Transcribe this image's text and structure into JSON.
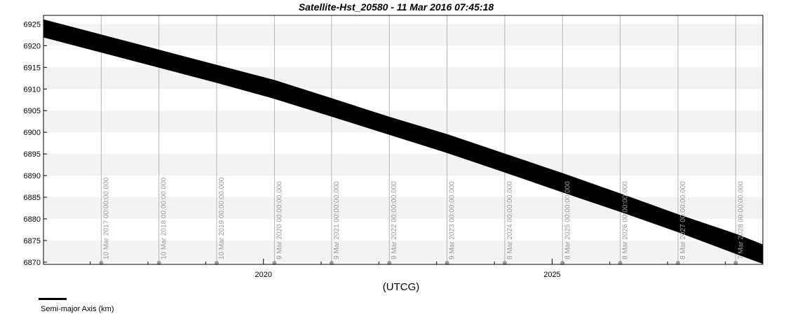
{
  "chart_data": {
    "type": "area",
    "title": "Satellite-Hst_20580 - 11 Mar 2016 07:45:18",
    "xlabel": "(UTCG)",
    "ylabel": "",
    "ylim": [
      6869.5,
      6927
    ],
    "xlim": [
      2016.19,
      2028.65
    ],
    "y_ticks": [
      6870,
      6875,
      6880,
      6885,
      6890,
      6895,
      6900,
      6905,
      6910,
      6915,
      6920,
      6925
    ],
    "x_ticks": [
      {
        "value": 2020.0,
        "label": "2020"
      },
      {
        "value": 2025.0,
        "label": "2025"
      }
    ],
    "x_minor_ticks": [
      2017.0,
      2018.0,
      2019.0,
      2021.0,
      2022.0,
      2023.0,
      2024.0,
      2026.0,
      2027.0,
      2028.0
    ],
    "grid": "alternating horizontal bands",
    "events": [
      {
        "x": 2017.19,
        "label": "10 Mar 2017 00:00:00.000"
      },
      {
        "x": 2018.19,
        "label": "10 Mar 2018 00:00:00.000"
      },
      {
        "x": 2019.19,
        "label": "10 Mar 2019 00:00:00.000"
      },
      {
        "x": 2020.19,
        "label": "9 Mar 2020 00:00:00.000"
      },
      {
        "x": 2021.18,
        "label": "9 Mar 2021 00:00:00.000"
      },
      {
        "x": 2022.18,
        "label": "9 Mar 2022 00:00:00.000"
      },
      {
        "x": 2023.18,
        "label": "9 Mar 2023 00:00:00.000"
      },
      {
        "x": 2024.18,
        "label": "8 Mar 2024 00:00:00.000"
      },
      {
        "x": 2025.18,
        "label": "8 Mar 2025 00:00:00.000"
      },
      {
        "x": 2026.18,
        "label": "8 Mar 2026 00:00:00.000"
      },
      {
        "x": 2027.18,
        "label": "8 Mar 2027 00:00:00.000"
      },
      {
        "x": 2028.18,
        "label": "7 Mar 2028 00:00:00.000"
      }
    ],
    "series": [
      {
        "name": "Semi-major Axis (km)",
        "color": "#000000",
        "x": [
          2016.19,
          2017.19,
          2018.19,
          2019.19,
          2020.19,
          2021.18,
          2022.18,
          2023.18,
          2024.18,
          2025.18,
          2026.18,
          2027.18,
          2028.18,
          2028.65
        ],
        "upper": [
          6926.0,
          6922.5,
          6919.0,
          6915.5,
          6912.0,
          6907.8,
          6903.5,
          6899.5,
          6895.0,
          6890.5,
          6885.8,
          6881.0,
          6876.5,
          6874.0
        ],
        "lower": [
          6922.0,
          6918.5,
          6915.0,
          6911.5,
          6907.8,
          6903.7,
          6899.5,
          6895.3,
          6890.8,
          6886.2,
          6881.7,
          6877.0,
          6872.0,
          6869.7
        ]
      }
    ],
    "legend": {
      "placement": "bottom-left"
    }
  }
}
